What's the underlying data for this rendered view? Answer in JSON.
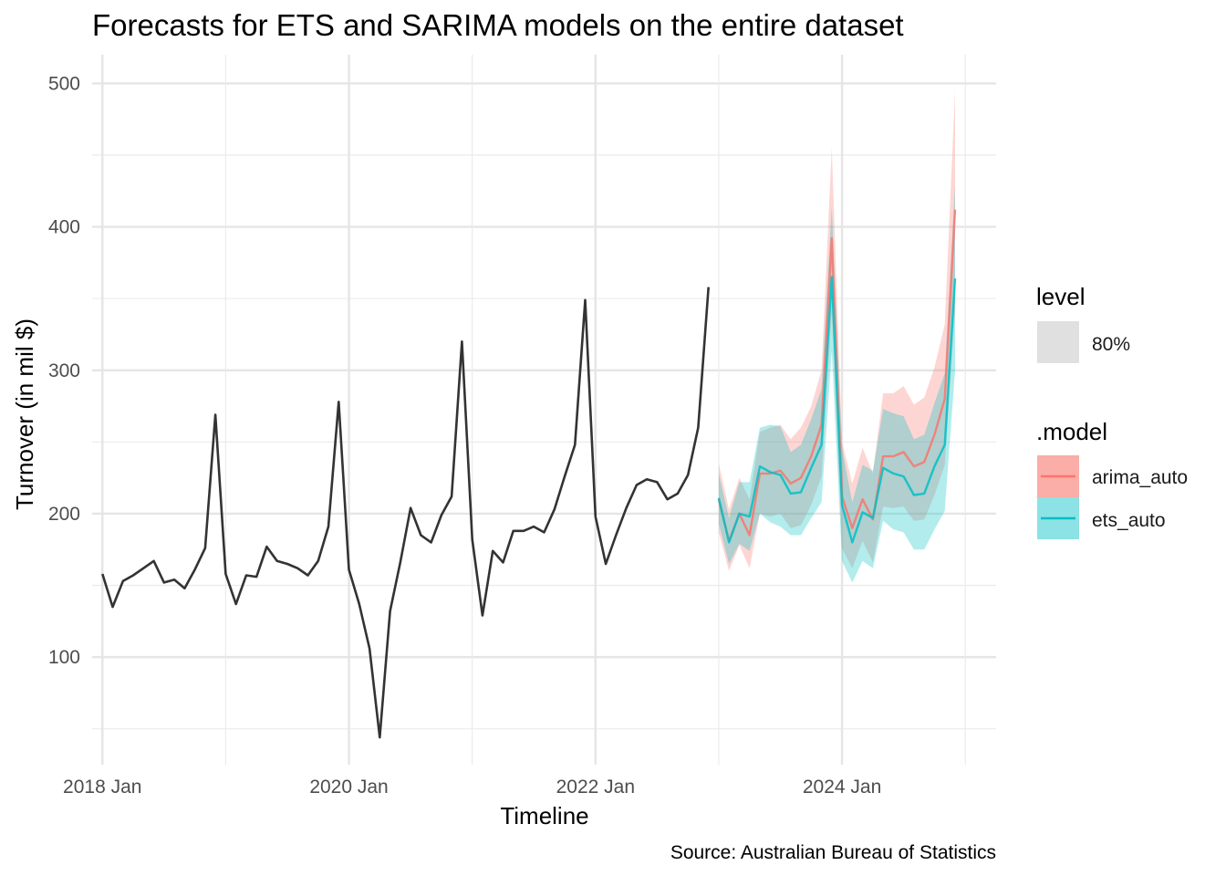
{
  "chart_data": {
    "type": "line",
    "title": "Forecasts for ETS and SARIMA models on the entire dataset",
    "xlabel": "Timeline",
    "ylabel": "Turnover (in mil $)",
    "caption": "Source: Australian Bureau of Statistics",
    "x_tick_labels": [
      "2018 Jan",
      "2020 Jan",
      "2022 Jan",
      "2024 Jan"
    ],
    "y_ticks": [
      100,
      200,
      300,
      400,
      500
    ],
    "ylim": [
      25,
      520
    ],
    "xlim": [
      "2017-12",
      "2025-04"
    ],
    "grid": true,
    "legend": {
      "position": "right",
      "level_title": "level",
      "level_label": "80%",
      "model_title": ".model",
      "models": [
        {
          "name": "arima_auto",
          "color": "#F8766D"
        },
        {
          "name": "ets_auto",
          "color": "#00BFC4"
        }
      ]
    },
    "history": {
      "start": "2018-01",
      "color": "#333333",
      "values": [
        158,
        135,
        153,
        157,
        162,
        167,
        152,
        154,
        148,
        161,
        176,
        269,
        158,
        137,
        157,
        156,
        177,
        167,
        165,
        162,
        157,
        167,
        191,
        278,
        161,
        137,
        106,
        44,
        132,
        166,
        204,
        185,
        180,
        199,
        212,
        320,
        182,
        129,
        174,
        166,
        188,
        188,
        191,
        187,
        203,
        226,
        248,
        349,
        198,
        165,
        185,
        204,
        220,
        224,
        222,
        210,
        214,
        227,
        260,
        358
      ]
    },
    "series": [
      {
        "name": "arima_auto",
        "start": "2023-01",
        "color": "#F8766D",
        "values": [
          210,
          181,
          200,
          185,
          228,
          228,
          230,
          221,
          225,
          240,
          262,
          392,
          212,
          190,
          210,
          196,
          240,
          240,
          243,
          233,
          236,
          255,
          280,
          412
        ],
        "lower": [
          187,
          160,
          178,
          162,
          200,
          198,
          200,
          190,
          192,
          206,
          226,
          340,
          176,
          162,
          181,
          166,
          205,
          204,
          205,
          195,
          196,
          213,
          234,
          342
        ],
        "upper": [
          235,
          203,
          225,
          210,
          257,
          260,
          262,
          252,
          260,
          275,
          300,
          455,
          250,
          221,
          246,
          228,
          284,
          284,
          289,
          276,
          281,
          302,
          332,
          495
        ]
      },
      {
        "name": "ets_auto",
        "start": "2023-01",
        "color": "#00BFC4",
        "values": [
          211,
          180,
          200,
          198,
          233,
          229,
          227,
          214,
          215,
          232,
          248,
          365,
          206,
          180,
          201,
          197,
          232,
          228,
          226,
          213,
          214,
          233,
          248,
          364
        ],
        "lower": [
          193,
          165,
          179,
          174,
          200,
          194,
          191,
          185,
          185,
          197,
          208,
          313,
          167,
          152,
          167,
          162,
          195,
          189,
          187,
          175,
          175,
          189,
          202,
          300
        ],
        "upper": [
          228,
          197,
          222,
          222,
          260,
          262,
          261,
          243,
          248,
          266,
          287,
          414,
          245,
          208,
          234,
          230,
          273,
          270,
          268,
          252,
          255,
          277,
          298,
          430
        ]
      }
    ]
  }
}
